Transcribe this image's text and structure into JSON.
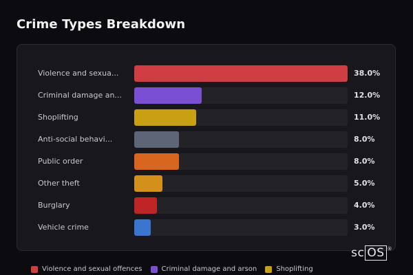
{
  "title": "Crime Types Breakdown",
  "watermark": {
    "prefix": "sc",
    "boxed": "OS",
    "mark": "®"
  },
  "chart_data": {
    "type": "bar",
    "orientation": "horizontal",
    "categories": [
      "Violence and sexua...",
      "Criminal damage an...",
      "Shoplifting",
      "Anti-social behavi...",
      "Public order",
      "Other theft",
      "Burglary",
      "Vehicle crime"
    ],
    "values": [
      38.0,
      12.0,
      11.0,
      8.0,
      8.0,
      5.0,
      4.0,
      3.0
    ],
    "value_labels": [
      "38.0%",
      "12.0%",
      "11.0%",
      "8.0%",
      "8.0%",
      "5.0%",
      "4.0%",
      "3.0%"
    ],
    "colors": [
      "#cf3e43",
      "#7b4fd4",
      "#c9a012",
      "#5d6577",
      "#d9661e",
      "#d3901b",
      "#bf2426",
      "#3a76cf"
    ],
    "xlim": [
      0,
      38.0
    ]
  },
  "legend": [
    {
      "label": "Violence and sexual offences",
      "color": "#cf3e43"
    },
    {
      "label": "Criminal damage and arson",
      "color": "#7b4fd4"
    },
    {
      "label": "Shoplifting",
      "color": "#c9a012"
    }
  ]
}
